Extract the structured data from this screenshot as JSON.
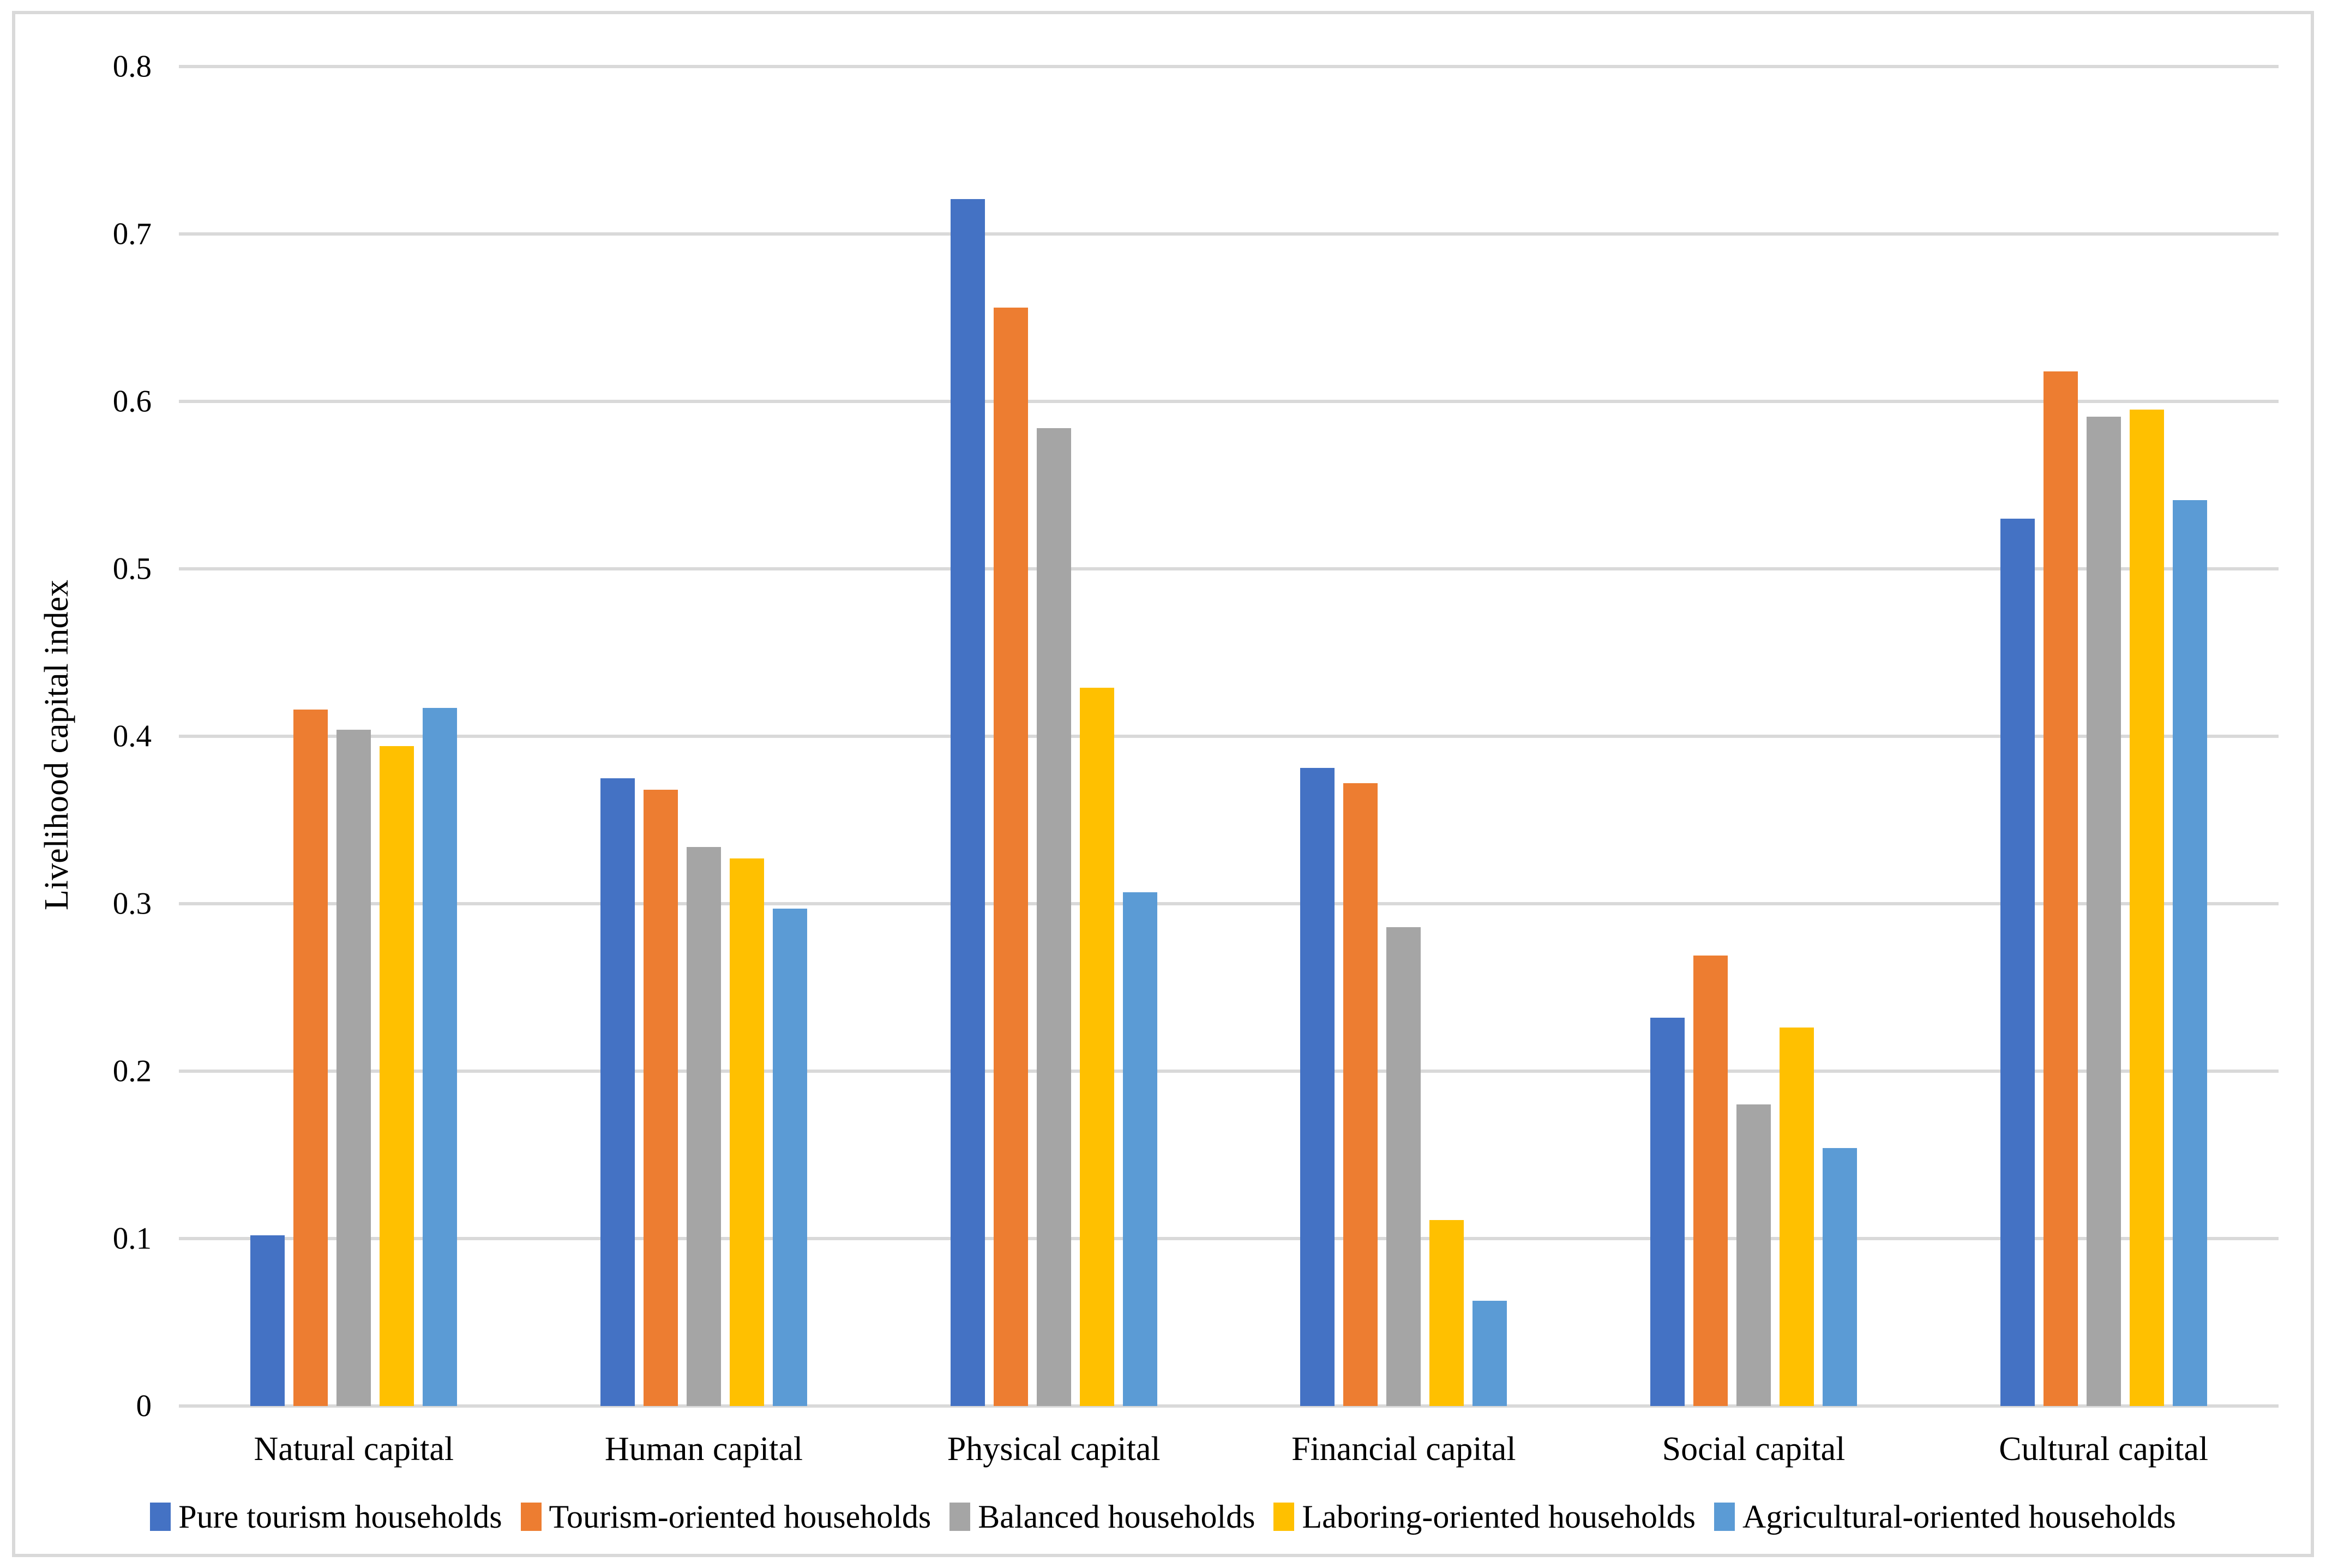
{
  "figure": {
    "border_color": "#d9d9d9",
    "background_color": "#ffffff",
    "gridline_color": "#d9d9d9",
    "text_color": "#000000"
  },
  "chart_data": {
    "type": "bar",
    "title": "",
    "xlabel": "",
    "ylabel": "Livelihood capital index",
    "ylim": [
      0,
      0.8
    ],
    "ytick_interval": 0.1,
    "yticks": [
      "0.8",
      "0.7",
      "0.6",
      "0.5",
      "0.4",
      "0.3",
      "0.2",
      "0.1",
      "0"
    ],
    "grid": true,
    "legend_position": "bottom",
    "categories": [
      "Natural capital",
      "Human capital",
      "Physical capital",
      "Financial capital",
      "Social capital",
      "Cultural capital"
    ],
    "series": [
      {
        "name": "Pure tourism households",
        "color": "#4472C4",
        "values": [
          0.102,
          0.375,
          0.721,
          0.381,
          0.232,
          0.53
        ]
      },
      {
        "name": "Tourism-oriented households",
        "color": "#ED7D31",
        "values": [
          0.416,
          0.368,
          0.656,
          0.372,
          0.269,
          0.618
        ]
      },
      {
        "name": "Balanced households",
        "color": "#A5A5A5",
        "values": [
          0.404,
          0.334,
          0.584,
          0.286,
          0.18,
          0.591
        ]
      },
      {
        "name": "Laboring-oriented households",
        "color": "#FFC000",
        "values": [
          0.394,
          0.327,
          0.429,
          0.111,
          0.226,
          0.595
        ]
      },
      {
        "name": "Agricultural-oriented households",
        "color": "#5B9BD5",
        "values": [
          0.417,
          0.297,
          0.307,
          0.063,
          0.154,
          0.541
        ]
      }
    ]
  }
}
